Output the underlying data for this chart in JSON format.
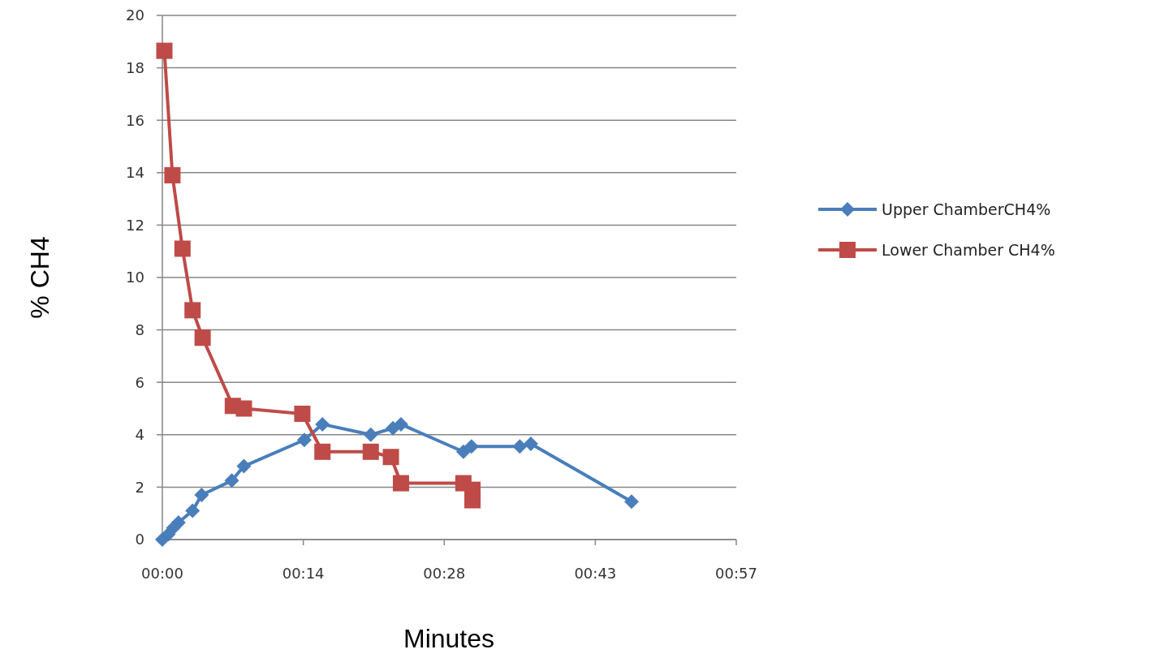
{
  "chart_data": {
    "type": "line",
    "xlabel": "Minutes",
    "ylabel": "% CH4",
    "xlim": [
      0,
      57
    ],
    "xticks": [
      {
        "value": 0,
        "label": "00:00"
      },
      {
        "value": 14,
        "label": "00:14"
      },
      {
        "value": 28,
        "label": "00:28"
      },
      {
        "value": 43,
        "label": "00:43"
      },
      {
        "value": 57,
        "label": "00:57"
      }
    ],
    "ylim": [
      0,
      20
    ],
    "yticks": [
      0,
      2,
      4,
      6,
      8,
      10,
      12,
      14,
      16,
      18,
      20
    ],
    "grid": "y",
    "legend": "right",
    "series": [
      {
        "name": "Upper ChamberCH4%",
        "color": "#4a7ebb",
        "marker": "diamond",
        "x": [
          0,
          0.6,
          1.1,
          1.6,
          3.0,
          3.9,
          6.9,
          8.1,
          14.1,
          15.9,
          20.7,
          22.9,
          23.7,
          29.9,
          30.7,
          35.5,
          36.6,
          46.6
        ],
        "values": [
          0,
          0.2,
          0.45,
          0.65,
          1.1,
          1.7,
          2.25,
          2.8,
          3.8,
          4.4,
          4.0,
          4.25,
          4.4,
          3.35,
          3.55,
          3.55,
          3.65,
          1.45
        ]
      },
      {
        "name": "Lower Chamber CH4%",
        "color": "#be4b48",
        "marker": "square",
        "x": [
          0.2,
          1.0,
          2.0,
          3.0,
          4.0,
          7.0,
          8.1,
          13.9,
          15.9,
          20.7,
          22.7,
          23.7,
          29.9,
          30.8,
          30.8
        ],
        "values": [
          18.65,
          13.9,
          11.1,
          8.75,
          7.7,
          5.1,
          5.0,
          4.8,
          3.35,
          3.35,
          3.15,
          2.15,
          2.15,
          1.9,
          1.5
        ]
      }
    ]
  }
}
